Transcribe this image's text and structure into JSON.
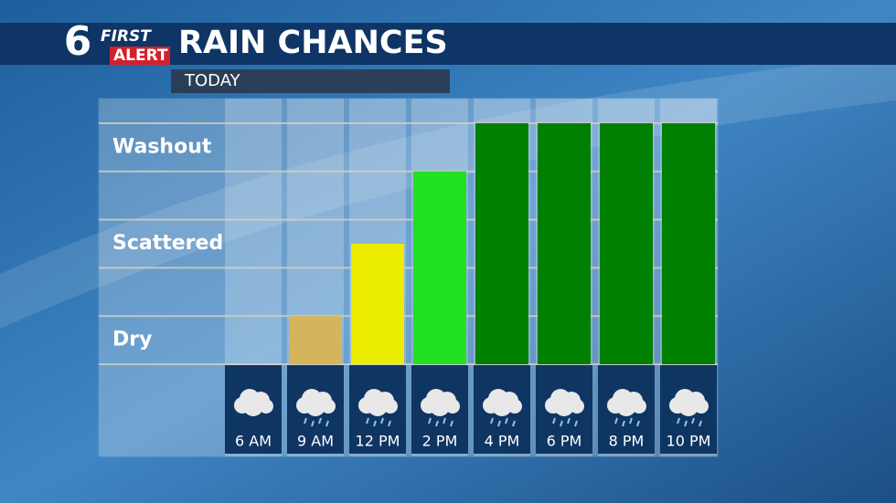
{
  "logo": {
    "number": "6",
    "line1": "FIRST",
    "line2": "ALERT"
  },
  "chart_data": {
    "type": "bar",
    "title": "RAIN CHANCES",
    "subtitle": "TODAY",
    "categories": [
      "6 AM",
      "9 AM",
      "12 PM",
      "2 PM",
      "4 PM",
      "6 PM",
      "8 PM",
      "10 PM"
    ],
    "values": [
      0,
      1,
      2.5,
      4,
      5,
      5,
      5,
      5
    ],
    "colors": [
      "#c8a850",
      "#d4b55c",
      "#ecec00",
      "#22e022",
      "#008000",
      "#008000",
      "#008000",
      "#008000"
    ],
    "ylim": [
      0,
      5
    ],
    "yticks": [
      {
        "value": 0.5,
        "label": "Dry"
      },
      {
        "value": 2.5,
        "label": "Scattered"
      },
      {
        "value": 4.5,
        "label": "Washout"
      }
    ],
    "gridlines": [
      0,
      1,
      2,
      3,
      4,
      5
    ],
    "grid": true
  }
}
